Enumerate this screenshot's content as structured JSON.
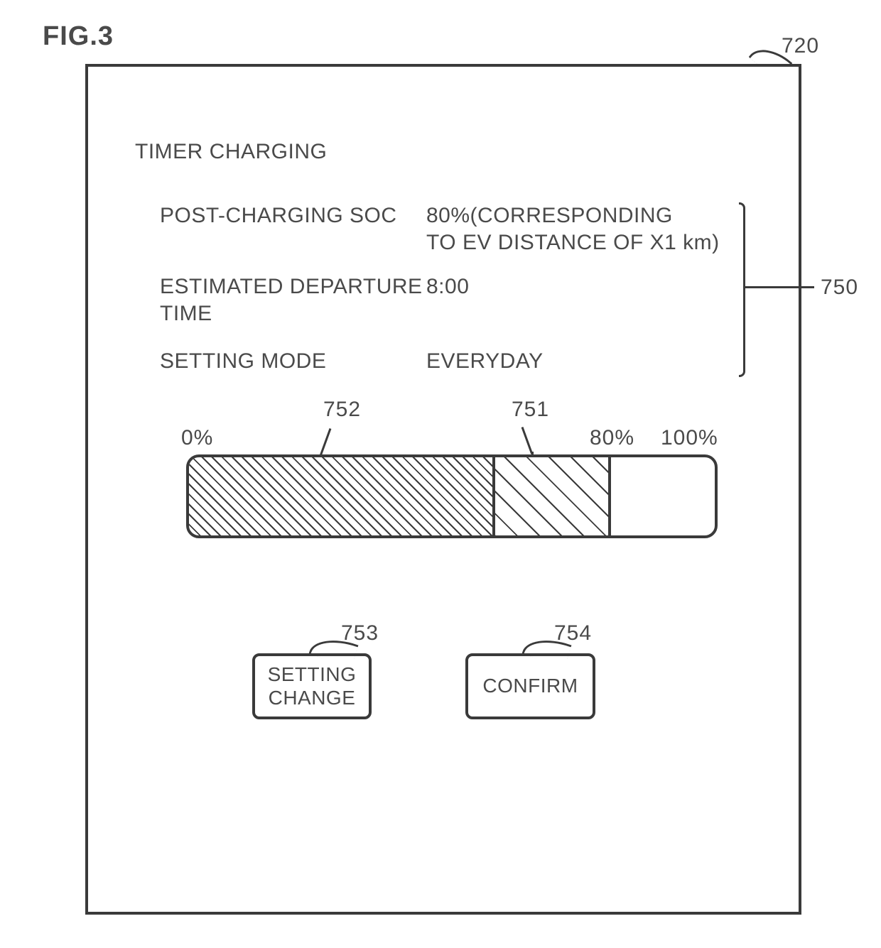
{
  "figure": {
    "label": "FIG.3",
    "screen_ref": "720",
    "section_ref": "750",
    "title": "TIMER CHARGING",
    "rows": [
      {
        "label": "POST-CHARGING SOC",
        "value": "80%(CORRESPONDING\nTO EV DISTANCE OF X1 km)"
      },
      {
        "label": "ESTIMATED DEPARTURE\nTIME",
        "value": "8:00"
      },
      {
        "label": "SETTING MODE",
        "value": "EVERYDAY"
      }
    ],
    "bar": {
      "ref_left": "752",
      "ref_right": "751",
      "label_min": "0%",
      "label_target": "80%",
      "label_max": "100%",
      "segments": [
        {
          "from_pct": 0,
          "to_pct": 58,
          "hatch_spacing": 10,
          "hatch_color": "#3a3a3a",
          "hatch_angle": 45
        },
        {
          "from_pct": 58,
          "to_pct": 80,
          "hatch_spacing": 22,
          "hatch_color": "#3a3a3a",
          "hatch_angle": 45
        }
      ],
      "target_pct": 80
    },
    "buttons": {
      "setting_change": {
        "label": "SETTING\nCHANGE",
        "ref": "753"
      },
      "confirm": {
        "label": "CONFIRM",
        "ref": "754"
      }
    }
  },
  "style": {
    "text_color": "#4a4a4a",
    "line_color": "#3a3a3a",
    "bg": "#ffffff"
  }
}
